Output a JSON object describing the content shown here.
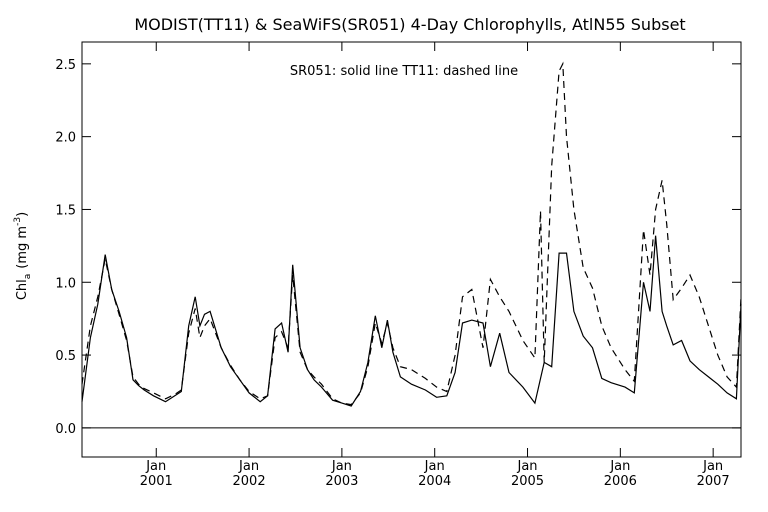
{
  "chart_data": {
    "type": "line",
    "title": "MODIST(TT11) & SeaWiFS(SR051) 4-Day Chlorophylls, AtlN55 Subset",
    "annotation": "SR051: solid line    TT11: dashed line",
    "ylabel_main": "Chl",
    "ylabel_sub": "a",
    "ylabel_units": "(mg m",
    "ylabel_exp": "-3",
    "ylabel_close": ")",
    "ylim": [
      -0.2,
      2.65
    ],
    "xlim": [
      2000.2,
      2007.3
    ],
    "yticks": [
      0.0,
      0.5,
      1.0,
      1.5,
      2.0,
      2.5
    ],
    "ytick_labels": [
      "0.0",
      "0.5",
      "1.0",
      "1.5",
      "2.0",
      "2.5"
    ],
    "xticks": [
      {
        "x": 2001,
        "top": "Jan",
        "bottom": "2001"
      },
      {
        "x": 2002,
        "top": "Jan",
        "bottom": "2002"
      },
      {
        "x": 2003,
        "top": "Jan",
        "bottom": "2003"
      },
      {
        "x": 2004,
        "top": "Jan",
        "bottom": "2004"
      },
      {
        "x": 2005,
        "top": "Jan",
        "bottom": "2005"
      },
      {
        "x": 2006,
        "top": "Jan",
        "bottom": "2006"
      },
      {
        "x": 2007,
        "top": "Jan",
        "bottom": "2007"
      }
    ],
    "zero_line": 0.0,
    "series": [
      {
        "name": "SR051",
        "style": "solid",
        "x": [
          2000.2,
          2000.29,
          2000.37,
          2000.45,
          2000.52,
          2000.6,
          2000.68,
          2000.75,
          2000.81,
          2000.87,
          2000.97,
          2001.1,
          2001.2,
          2001.27,
          2001.35,
          2001.42,
          2001.47,
          2001.52,
          2001.58,
          2001.7,
          2001.8,
          2001.9,
          2002.0,
          2002.12,
          2002.2,
          2002.28,
          2002.35,
          2002.42,
          2002.47,
          2002.55,
          2002.63,
          2002.7,
          2002.78,
          2002.9,
          2003.0,
          2003.1,
          2003.2,
          2003.28,
          2003.36,
          2003.43,
          2003.49,
          2003.55,
          2003.63,
          2003.75,
          2003.9,
          2004.02,
          2004.13,
          2004.22,
          2004.3,
          2004.4,
          2004.52,
          2004.6,
          2004.7,
          2004.8,
          2004.95,
          2005.08,
          2005.18,
          2005.26,
          2005.34,
          2005.42,
          2005.5,
          2005.6,
          2005.7,
          2005.8,
          2005.9,
          2006.05,
          2006.15,
          2006.25,
          2006.32,
          2006.38,
          2006.45,
          2006.5,
          2006.57,
          2006.66,
          2006.75,
          2006.85,
          2006.95,
          2007.05,
          2007.15,
          2007.25,
          2007.3
        ],
        "y": [
          0.18,
          0.62,
          0.85,
          1.19,
          0.95,
          0.8,
          0.62,
          0.33,
          0.29,
          0.26,
          0.22,
          0.18,
          0.22,
          0.25,
          0.7,
          0.9,
          0.7,
          0.78,
          0.8,
          0.55,
          0.42,
          0.33,
          0.24,
          0.18,
          0.22,
          0.68,
          0.72,
          0.52,
          1.12,
          0.55,
          0.4,
          0.33,
          0.28,
          0.19,
          0.17,
          0.15,
          0.25,
          0.45,
          0.77,
          0.55,
          0.74,
          0.52,
          0.35,
          0.3,
          0.26,
          0.21,
          0.22,
          0.38,
          0.72,
          0.74,
          0.72,
          0.42,
          0.65,
          0.38,
          0.28,
          0.17,
          0.45,
          0.42,
          1.2,
          1.2,
          0.8,
          0.63,
          0.55,
          0.34,
          0.31,
          0.28,
          0.24,
          1.0,
          0.8,
          1.32,
          0.8,
          0.7,
          0.57,
          0.6,
          0.46,
          0.4,
          0.35,
          0.3,
          0.24,
          0.2,
          0.85
        ]
      },
      {
        "name": "TT11",
        "style": "dashed",
        "x": [
          2000.2,
          2000.29,
          2000.37,
          2000.45,
          2000.52,
          2000.6,
          2000.68,
          2000.75,
          2000.81,
          2000.87,
          2000.97,
          2001.1,
          2001.2,
          2001.27,
          2001.35,
          2001.42,
          2001.47,
          2001.52,
          2001.58,
          2001.7,
          2001.8,
          2001.9,
          2002.0,
          2002.12,
          2002.2,
          2002.28,
          2002.35,
          2002.42,
          2002.47,
          2002.55,
          2002.63,
          2002.7,
          2002.78,
          2002.9,
          2003.0,
          2003.1,
          2003.2,
          2003.28,
          2003.36,
          2003.43,
          2003.49,
          2003.55,
          2003.63,
          2003.75,
          2003.9,
          2004.02,
          2004.13,
          2004.22,
          2004.3,
          2004.4,
          2004.52,
          2004.6,
          2004.7,
          2004.8,
          2004.95,
          2005.08,
          2005.14,
          2005.18,
          2005.26,
          2005.34,
          2005.38,
          2005.42,
          2005.5,
          2005.6,
          2005.7,
          2005.8,
          2005.9,
          2006.05,
          2006.15,
          2006.25,
          2006.32,
          2006.38,
          2006.45,
          2006.5,
          2006.57,
          2006.66,
          2006.75,
          2006.85,
          2006.95,
          2007.05,
          2007.15,
          2007.25,
          2007.3
        ],
        "y": [
          0.3,
          0.7,
          0.9,
          1.16,
          0.95,
          0.78,
          0.6,
          0.35,
          0.3,
          0.27,
          0.24,
          0.2,
          0.23,
          0.26,
          0.65,
          0.82,
          0.62,
          0.7,
          0.75,
          0.55,
          0.43,
          0.33,
          0.25,
          0.2,
          0.22,
          0.62,
          0.66,
          0.55,
          1.05,
          0.52,
          0.4,
          0.35,
          0.3,
          0.2,
          0.17,
          0.16,
          0.24,
          0.42,
          0.72,
          0.58,
          0.72,
          0.55,
          0.42,
          0.4,
          0.34,
          0.28,
          0.25,
          0.5,
          0.9,
          0.95,
          0.55,
          1.02,
          0.9,
          0.8,
          0.6,
          0.48,
          1.49,
          0.45,
          1.8,
          2.45,
          2.5,
          2.0,
          1.5,
          1.1,
          0.96,
          0.7,
          0.55,
          0.4,
          0.32,
          1.36,
          1.05,
          1.5,
          1.7,
          1.4,
          0.88,
          0.96,
          1.05,
          0.9,
          0.7,
          0.5,
          0.35,
          0.28,
          0.9
        ]
      }
    ]
  }
}
